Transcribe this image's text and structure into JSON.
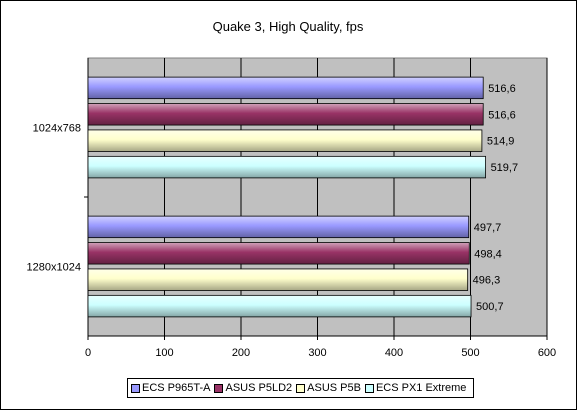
{
  "chart_data": {
    "type": "bar",
    "orientation": "horizontal",
    "title": "Quake 3, High Quality, fps",
    "categories": [
      "1024x768",
      "1280x1024"
    ],
    "series": [
      {
        "name": "ECS P965T-A",
        "color": "#9999ff",
        "values": [
          516.6,
          497.7
        ],
        "labels": [
          "516,6",
          "497,7"
        ]
      },
      {
        "name": "ASUS P5LD2",
        "color": "#993366",
        "values": [
          516.6,
          498.4
        ],
        "labels": [
          "516,6",
          "498,4"
        ]
      },
      {
        "name": "ASUS P5B",
        "color": "#ffffcc",
        "values": [
          514.9,
          496.3
        ],
        "labels": [
          "514,9",
          "496,3"
        ]
      },
      {
        "name": "ECS PX1 Extreme",
        "color": "#ccffff",
        "values": [
          519.7,
          500.7
        ],
        "labels": [
          "519,7",
          "500,7"
        ]
      }
    ],
    "xlim": [
      0,
      600
    ],
    "xticks": [
      0,
      100,
      200,
      300,
      400,
      500,
      600
    ],
    "grid": true,
    "plot_background": "#c0c0c0",
    "legend_position": "bottom"
  }
}
